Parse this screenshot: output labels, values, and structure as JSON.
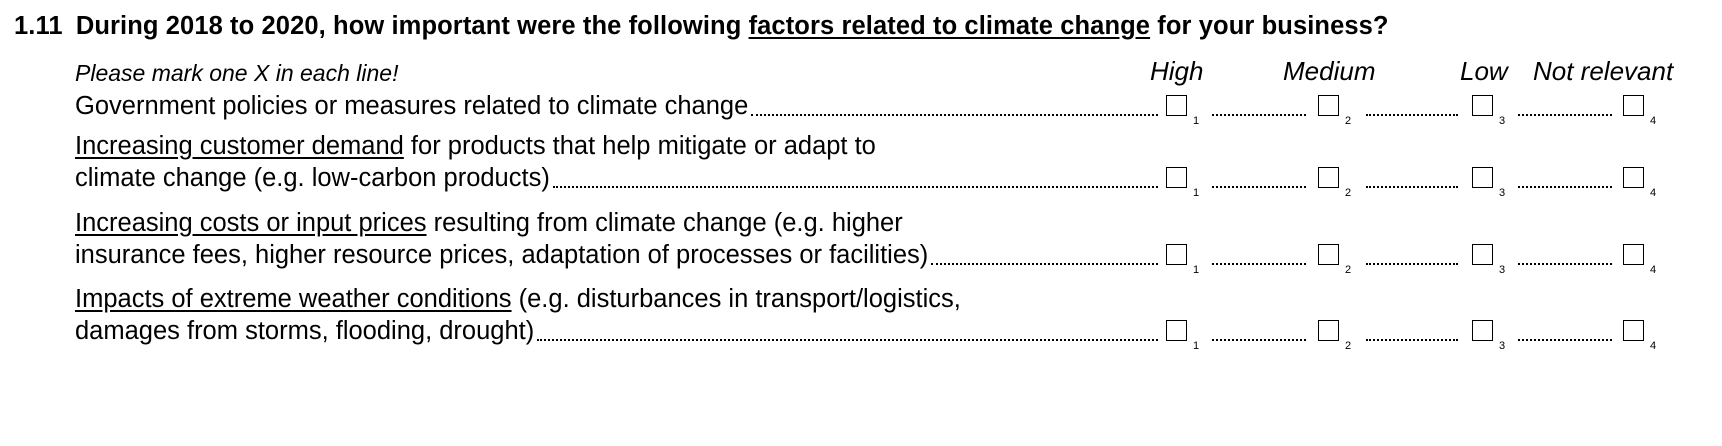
{
  "question": {
    "number": "1.11",
    "pre": "During 2018 to 2020, how important were the following",
    "underlined": "factors related to climate change",
    "post": "for your business?"
  },
  "instruction": "Please mark one X in each line!",
  "columns": [
    "High",
    "Medium",
    "Low",
    "Not relevant"
  ],
  "codes": [
    "1",
    "2",
    "3",
    "4"
  ],
  "rows": [
    {
      "underlined": "",
      "line1": "Government policies or measures related to climate change",
      "line2": ""
    },
    {
      "underlined": "Increasing customer demand",
      "line1": " for products that help mitigate or adapt to",
      "line2": "climate change (e.g. low-carbon products)"
    },
    {
      "underlined": "Increasing costs or input prices",
      "line1": " resulting from climate change (e.g. higher",
      "line2": "insurance fees, higher resource prices, adaptation of processes or facilities)"
    },
    {
      "underlined": "Impacts of extreme weather conditions",
      "line1": " (e.g. disturbances in transport/logistics,",
      "line2": "damages from storms, flooding, drought)"
    }
  ]
}
